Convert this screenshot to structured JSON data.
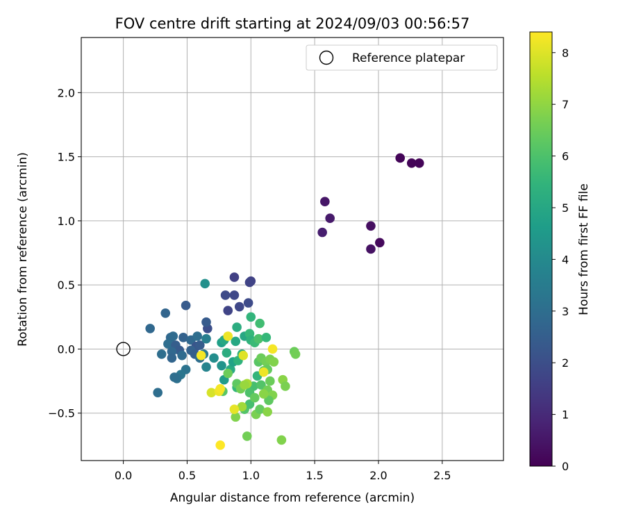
{
  "chart_data": {
    "type": "scatter",
    "title": "FOV centre drift starting at 2024/09/03 00:56:57",
    "xlabel": "Angular distance from reference (arcmin)",
    "ylabel": "Rotation from reference (arcmin)",
    "xlim": [
      -0.33,
      2.98
    ],
    "ylim": [
      -0.87,
      2.43
    ],
    "xticks": [
      "0.0",
      "0.5",
      "1.0",
      "1.5",
      "2.0",
      "2.5"
    ],
    "xtick_values": [
      0.0,
      0.5,
      1.0,
      1.5,
      2.0,
      2.5
    ],
    "yticks": [
      "−0.5",
      "0.0",
      "0.5",
      "1.0",
      "1.5",
      "2.0"
    ],
    "ytick_values": [
      -0.5,
      0.0,
      0.5,
      1.0,
      1.5,
      2.0
    ],
    "grid": true,
    "legend": {
      "label": "Reference platepar",
      "position": "top-right",
      "marker": "open-circle"
    },
    "reference_point": {
      "x": 0.0,
      "y": 0.0
    },
    "colorbar": {
      "label": "Hours from first FF file",
      "colormap": "viridis",
      "range": [
        0,
        8.4
      ],
      "ticks": [
        "0",
        "1",
        "2",
        "3",
        "4",
        "5",
        "6",
        "7",
        "8"
      ],
      "tick_values": [
        0,
        1,
        2,
        3,
        4,
        5,
        6,
        7,
        8
      ]
    },
    "points": [
      {
        "x": 2.17,
        "y": 1.49,
        "h": 0.1
      },
      {
        "x": 2.26,
        "y": 1.45,
        "h": 0.1
      },
      {
        "x": 2.32,
        "y": 1.45,
        "h": 0.1
      },
      {
        "x": 2.01,
        "y": 0.83,
        "h": 0.2
      },
      {
        "x": 1.94,
        "y": 0.96,
        "h": 0.3
      },
      {
        "x": 1.94,
        "y": 0.78,
        "h": 0.4
      },
      {
        "x": 1.58,
        "y": 1.15,
        "h": 0.5
      },
      {
        "x": 1.62,
        "y": 1.02,
        "h": 0.6
      },
      {
        "x": 1.56,
        "y": 0.91,
        "h": 0.7
      },
      {
        "x": 1.0,
        "y": 0.53,
        "h": 1.6
      },
      {
        "x": 0.99,
        "y": 0.52,
        "h": 1.7
      },
      {
        "x": 0.87,
        "y": 0.56,
        "h": 1.6
      },
      {
        "x": 0.87,
        "y": 0.42,
        "h": 1.8
      },
      {
        "x": 0.8,
        "y": 0.42,
        "h": 1.9
      },
      {
        "x": 0.98,
        "y": 0.36,
        "h": 1.9
      },
      {
        "x": 0.91,
        "y": 0.33,
        "h": 1.8
      },
      {
        "x": 0.82,
        "y": 0.3,
        "h": 1.7
      },
      {
        "x": 0.66,
        "y": 0.16,
        "h": 2.0
      },
      {
        "x": 0.65,
        "y": 0.21,
        "h": 2.4
      },
      {
        "x": 0.49,
        "y": 0.34,
        "h": 2.4
      },
      {
        "x": 0.33,
        "y": 0.28,
        "h": 2.7
      },
      {
        "x": 0.21,
        "y": 0.16,
        "h": 2.8
      },
      {
        "x": 0.37,
        "y": 0.09,
        "h": 2.8
      },
      {
        "x": 0.39,
        "y": 0.1,
        "h": 2.9
      },
      {
        "x": 0.35,
        "y": 0.04,
        "h": 3.0
      },
      {
        "x": 0.41,
        "y": 0.03,
        "h": 2.5
      },
      {
        "x": 0.44,
        "y": -0.01,
        "h": 2.4
      },
      {
        "x": 0.47,
        "y": 0.09,
        "h": 2.6
      },
      {
        "x": 0.53,
        "y": 0.07,
        "h": 2.8
      },
      {
        "x": 0.58,
        "y": 0.1,
        "h": 3.0
      },
      {
        "x": 0.57,
        "y": 0.02,
        "h": 2.2
      },
      {
        "x": 0.6,
        "y": 0.03,
        "h": 2.4
      },
      {
        "x": 0.53,
        "y": -0.01,
        "h": 2.6
      },
      {
        "x": 0.56,
        "y": -0.04,
        "h": 2.5
      },
      {
        "x": 0.38,
        "y": -0.02,
        "h": 2.8
      },
      {
        "x": 0.3,
        "y": -0.04,
        "h": 3.0
      },
      {
        "x": 0.38,
        "y": -0.07,
        "h": 2.7
      },
      {
        "x": 0.46,
        "y": -0.05,
        "h": 2.9
      },
      {
        "x": 0.6,
        "y": -0.07,
        "h": 3.0
      },
      {
        "x": 0.49,
        "y": -0.16,
        "h": 3.2
      },
      {
        "x": 0.45,
        "y": -0.2,
        "h": 3.3
      },
      {
        "x": 0.42,
        "y": -0.23,
        "h": 3.1
      },
      {
        "x": 0.4,
        "y": -0.22,
        "h": 3.0
      },
      {
        "x": 0.27,
        "y": -0.34,
        "h": 3.0
      },
      {
        "x": 0.63,
        "y": -0.04,
        "h": 3.4
      },
      {
        "x": 0.65,
        "y": -0.14,
        "h": 3.8
      },
      {
        "x": 0.65,
        "y": 0.08,
        "h": 3.6
      },
      {
        "x": 0.64,
        "y": 0.51,
        "h": 4.2
      },
      {
        "x": 0.71,
        "y": -0.07,
        "h": 4.1
      },
      {
        "x": 0.77,
        "y": -0.13,
        "h": 4.3
      },
      {
        "x": 0.77,
        "y": 0.05,
        "h": 4.7
      },
      {
        "x": 0.79,
        "y": 0.07,
        "h": 5.0
      },
      {
        "x": 0.81,
        "y": -0.03,
        "h": 5.2
      },
      {
        "x": 0.84,
        "y": -0.16,
        "h": 5.1
      },
      {
        "x": 0.79,
        "y": -0.24,
        "h": 4.6
      },
      {
        "x": 0.86,
        "y": -0.1,
        "h": 4.8
      },
      {
        "x": 0.88,
        "y": 0.06,
        "h": 5.0
      },
      {
        "x": 0.89,
        "y": 0.17,
        "h": 5.2
      },
      {
        "x": 0.9,
        "y": -0.09,
        "h": 5.4
      },
      {
        "x": 0.93,
        "y": -0.04,
        "h": 5.3
      },
      {
        "x": 0.95,
        "y": 0.1,
        "h": 5.0
      },
      {
        "x": 0.99,
        "y": 0.12,
        "h": 5.6
      },
      {
        "x": 1.0,
        "y": 0.25,
        "h": 5.5
      },
      {
        "x": 1.0,
        "y": 0.07,
        "h": 5.4
      },
      {
        "x": 1.03,
        "y": 0.05,
        "h": 5.7
      },
      {
        "x": 1.06,
        "y": 0.08,
        "h": 6.0
      },
      {
        "x": 1.07,
        "y": 0.2,
        "h": 5.8
      },
      {
        "x": 1.12,
        "y": 0.09,
        "h": 5.6
      },
      {
        "x": 1.05,
        "y": -0.21,
        "h": 5.5
      },
      {
        "x": 1.02,
        "y": -0.29,
        "h": 5.9
      },
      {
        "x": 0.89,
        "y": -0.3,
        "h": 5.6
      },
      {
        "x": 0.78,
        "y": -0.33,
        "h": 6.2
      },
      {
        "x": 0.82,
        "y": -0.19,
        "h": 6.5
      },
      {
        "x": 0.89,
        "y": -0.27,
        "h": 6.3
      },
      {
        "x": 0.92,
        "y": -0.31,
        "h": 6.6
      },
      {
        "x": 0.95,
        "y": -0.47,
        "h": 6.1
      },
      {
        "x": 0.99,
        "y": -0.43,
        "h": 5.9
      },
      {
        "x": 0.99,
        "y": -0.34,
        "h": 6.0
      },
      {
        "x": 1.03,
        "y": -0.38,
        "h": 6.4
      },
      {
        "x": 1.08,
        "y": -0.28,
        "h": 6.1
      },
      {
        "x": 1.1,
        "y": -0.17,
        "h": 6.3
      },
      {
        "x": 1.06,
        "y": -0.1,
        "h": 6.2
      },
      {
        "x": 1.08,
        "y": -0.07,
        "h": 6.5
      },
      {
        "x": 1.12,
        "y": -0.1,
        "h": 6.6
      },
      {
        "x": 1.15,
        "y": -0.08,
        "h": 6.7
      },
      {
        "x": 1.18,
        "y": -0.1,
        "h": 6.8
      },
      {
        "x": 1.13,
        "y": -0.16,
        "h": 6.4
      },
      {
        "x": 1.15,
        "y": -0.25,
        "h": 6.5
      },
      {
        "x": 1.13,
        "y": -0.32,
        "h": 6.6
      },
      {
        "x": 1.17,
        "y": -0.36,
        "h": 6.8
      },
      {
        "x": 1.14,
        "y": -0.4,
        "h": 6.3
      },
      {
        "x": 1.1,
        "y": -0.35,
        "h": 6.9
      },
      {
        "x": 1.04,
        "y": -0.51,
        "h": 6.7
      },
      {
        "x": 1.07,
        "y": -0.47,
        "h": 6.4
      },
      {
        "x": 1.13,
        "y": -0.49,
        "h": 6.9
      },
      {
        "x": 0.97,
        "y": -0.68,
        "h": 6.6
      },
      {
        "x": 0.88,
        "y": -0.53,
        "h": 6.8
      },
      {
        "x": 0.93,
        "y": -0.45,
        "h": 7.2
      },
      {
        "x": 1.25,
        "y": -0.24,
        "h": 6.9
      },
      {
        "x": 1.27,
        "y": -0.29,
        "h": 6.7
      },
      {
        "x": 1.34,
        "y": -0.02,
        "h": 6.5
      },
      {
        "x": 1.35,
        "y": -0.04,
        "h": 6.6
      },
      {
        "x": 1.24,
        "y": -0.71,
        "h": 6.8
      },
      {
        "x": 0.97,
        "y": -0.27,
        "h": 7.3
      },
      {
        "x": 0.95,
        "y": -0.28,
        "h": 7.1
      },
      {
        "x": 1.1,
        "y": -0.18,
        "h": 8.2
      },
      {
        "x": 0.94,
        "y": -0.05,
        "h": 8.0
      },
      {
        "x": 0.82,
        "y": 0.1,
        "h": 8.2
      },
      {
        "x": 0.61,
        "y": -0.05,
        "h": 8.3
      },
      {
        "x": 0.69,
        "y": -0.34,
        "h": 7.9
      },
      {
        "x": 0.75,
        "y": -0.33,
        "h": 8.2
      },
      {
        "x": 0.76,
        "y": -0.31,
        "h": 8.3
      },
      {
        "x": 0.87,
        "y": -0.47,
        "h": 8.1
      },
      {
        "x": 0.76,
        "y": -0.75,
        "h": 8.4
      },
      {
        "x": 1.17,
        "y": 0.0,
        "h": 8.3
      }
    ]
  }
}
